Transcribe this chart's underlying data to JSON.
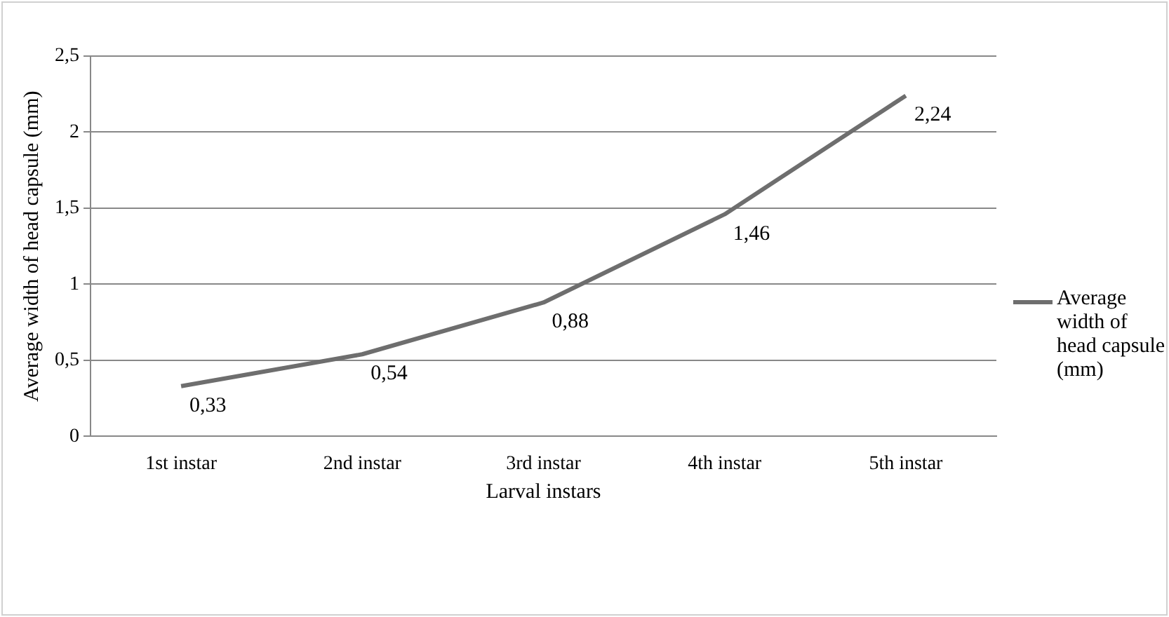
{
  "chart_data": {
    "type": "line",
    "xlabel": "Larval instars",
    "ylabel": "Average width of head capsule (mm)",
    "categories": [
      "1st instar",
      "2nd instar",
      "3rd instar",
      "4th instar",
      "5th instar"
    ],
    "series": [
      {
        "name": "Average width of head capsule (mm)",
        "color": "#6e6e6e",
        "values": [
          0.33,
          0.54,
          0.88,
          1.46,
          2.24
        ],
        "value_labels": [
          "0,33",
          "0,54",
          "0,88",
          "1,46",
          "2,24"
        ]
      }
    ],
    "ylim": [
      0,
      2.5
    ],
    "yticks": [
      0,
      {
        "value": 0.5,
        "label": "0,5"
      },
      1,
      {
        "value": 1.5,
        "label": "1,5"
      },
      2,
      {
        "value": 2.5,
        "label": "2,5"
      }
    ],
    "grid": "y",
    "legend": "right",
    "marker": "none",
    "line_style": "solid"
  }
}
